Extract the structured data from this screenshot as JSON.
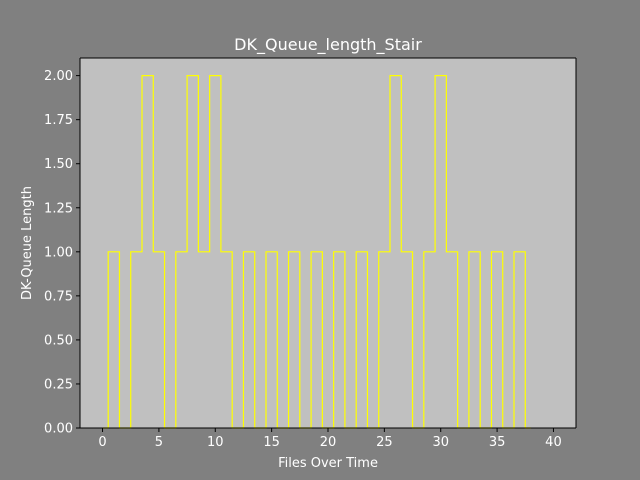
{
  "chart_data": {
    "type": "line",
    "drawstyle": "steps",
    "title": "DK_Queue_length_Stair",
    "xlabel": "Files Over Time",
    "ylabel": "DK-Queue Length",
    "xlim": [
      -2,
      42
    ],
    "ylim": [
      0,
      2.1
    ],
    "xticks": [
      0,
      5,
      10,
      15,
      20,
      25,
      30,
      35,
      40
    ],
    "xtick_labels": [
      "0",
      "5",
      "10",
      "15",
      "20",
      "25",
      "30",
      "35",
      "40"
    ],
    "yticks": [
      0,
      0.25,
      0.5,
      0.75,
      1.0,
      1.25,
      1.5,
      1.75,
      2.0
    ],
    "ytick_labels": [
      "0.00",
      "0.25",
      "0.50",
      "0.75",
      "1.00",
      "1.25",
      "1.50",
      "1.75",
      "2.00"
    ],
    "grid": false,
    "colors": {
      "figure_bg": "#808080",
      "axes_bg": "#c0c0c0",
      "line": "#ffff00",
      "text": "#ffffff"
    },
    "series": [
      {
        "x": [
          0,
          1,
          2,
          3,
          4,
          5,
          6,
          7,
          8,
          9,
          10,
          11,
          12,
          13,
          14,
          15,
          16,
          17,
          18,
          19,
          20,
          21,
          22,
          23,
          24,
          25,
          26,
          27,
          28,
          29,
          30,
          31,
          32,
          33,
          34,
          35,
          36,
          37,
          38
        ],
        "values": [
          0,
          1,
          0,
          1,
          2,
          1,
          0,
          1,
          2,
          1,
          2,
          1,
          0,
          1,
          0,
          1,
          0,
          1,
          0,
          1,
          0,
          1,
          0,
          1,
          0,
          1,
          2,
          1,
          0,
          1,
          2,
          1,
          0,
          1,
          0,
          1,
          0,
          1,
          0
        ]
      }
    ]
  }
}
